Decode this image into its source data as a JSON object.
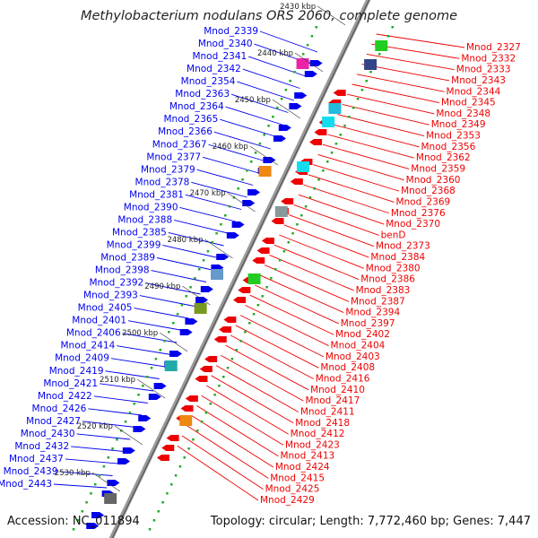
{
  "title": "Methylobacterium nodulans ORS 2060, complete genome",
  "accession": "Accession: NC_011894",
  "topology": "Topology: circular; Length: 7,772,460 bp; Genes: 7,447",
  "colors": {
    "forward": "#0000ee",
    "reverse": "#ee0000",
    "backbone": "#888888",
    "tick": "#22aa22"
  },
  "kbp_labels": [
    "2430 kbp",
    "2440 kbp",
    "2450 kbp",
    "2460 kbp",
    "2470 kbp",
    "2480 kbp",
    "2490 kbp",
    "2500 kbp",
    "2510 kbp",
    "2520 kbp",
    "2530 kbp"
  ],
  "left_genes": [
    "Mnod_2339",
    "Mnod_2340",
    "Mnod_2341",
    "Mnod_2342",
    "Mnod_2354",
    "Mnod_2363",
    "Mnod_2364",
    "Mnod_2365",
    "Mnod_2366",
    "Mnod_2367",
    "Mnod_2377",
    "Mnod_2379",
    "Mnod_2378",
    "Mnod_2381",
    "Mnod_2390",
    "Mnod_2388",
    "Mnod_2385",
    "Mnod_2399",
    "Mnod_2389",
    "Mnod_2398",
    "Mnod_2392",
    "Mnod_2393",
    "Mnod_2405",
    "Mnod_2401",
    "Mnod_2406",
    "Mnod_2414",
    "Mnod_2409",
    "Mnod_2419",
    "Mnod_2421",
    "Mnod_2422",
    "Mnod_2426",
    "Mnod_2427",
    "Mnod_2430",
    "Mnod_2432",
    "Mnod_2437",
    "Mnod_2439",
    "Mnod_2443"
  ],
  "right_genes": [
    "Mnod_2327",
    "Mnod_2332",
    "Mnod_2333",
    "Mnod_2343",
    "Mnod_2344",
    "Mnod_2345",
    "Mnod_2348",
    "Mnod_2349",
    "Mnod_2353",
    "Mnod_2356",
    "Mnod_2362",
    "Mnod_2359",
    "Mnod_2360",
    "Mnod_2368",
    "Mnod_2369",
    "Mnod_2376",
    "Mnod_2370",
    "benD",
    "Mnod_2373",
    "Mnod_2384",
    "Mnod_2380",
    "Mnod_2386",
    "Mnod_2383",
    "Mnod_2387",
    "Mnod_2394",
    "Mnod_2397",
    "Mnod_2402",
    "Mnod_2404",
    "Mnod_2403",
    "Mnod_2408",
    "Mnod_2416",
    "Mnod_2410",
    "Mnod_2417",
    "Mnod_2411",
    "Mnod_2418",
    "Mnod_2412",
    "Mnod_2423",
    "Mnod_2413",
    "Mnod_2424",
    "Mnod_2415",
    "Mnod_2425",
    "Mnod_2429"
  ]
}
